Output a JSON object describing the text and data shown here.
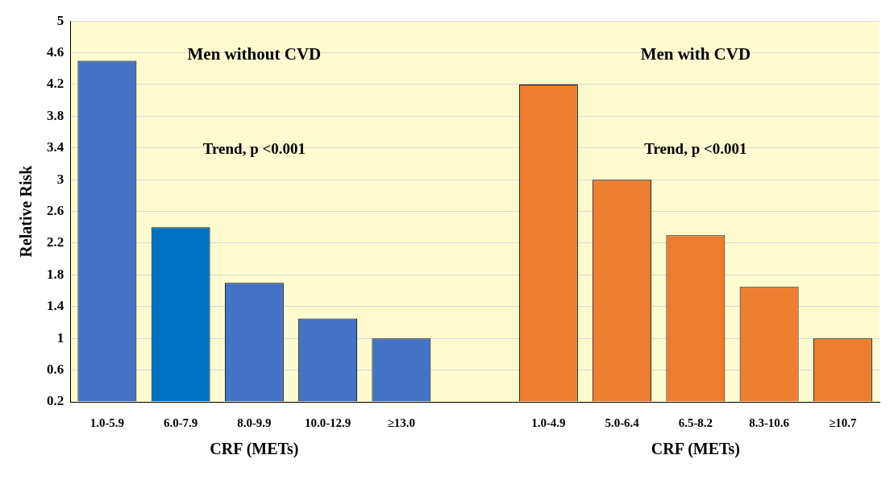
{
  "chart_data": {
    "type": "bar",
    "xlabel": "CRF (METs)",
    "ylabel": "Relative Risk",
    "categories": [
      "1.0-5.9",
      "6.0-7.9",
      "8.0-9.9",
      "10.0-12.9",
      "≥13.0",
      null,
      "1.0-4.9",
      "5.0-6.4",
      "6.5-8.2",
      "8.3-10.6",
      "≥10.7"
    ],
    "values": [
      4.5,
      2.4,
      1.7,
      1.25,
      1.0,
      null,
      4.2,
      3.0,
      2.3,
      1.65,
      1.0
    ],
    "colors": [
      "#4472c4",
      "#0070c0",
      "#4472c4",
      "#4472c4",
      "#4472c4",
      "#4472c4",
      "#ed7d31",
      "#ed7d31",
      "#ed7d31",
      "#ed7d31",
      "#ed7d31"
    ],
    "ylim": [
      0.2,
      5
    ],
    "yticks": [
      0.2,
      0.6,
      1,
      1.4,
      1.8,
      2.2,
      2.6,
      3,
      3.4,
      3.8,
      4.2,
      4.6,
      5
    ],
    "grid": "y",
    "legend": false,
    "annotations": [
      "Men without CVD",
      "Trend, p <0.001",
      "Men with CVD",
      "Trend, p <0.001"
    ]
  }
}
